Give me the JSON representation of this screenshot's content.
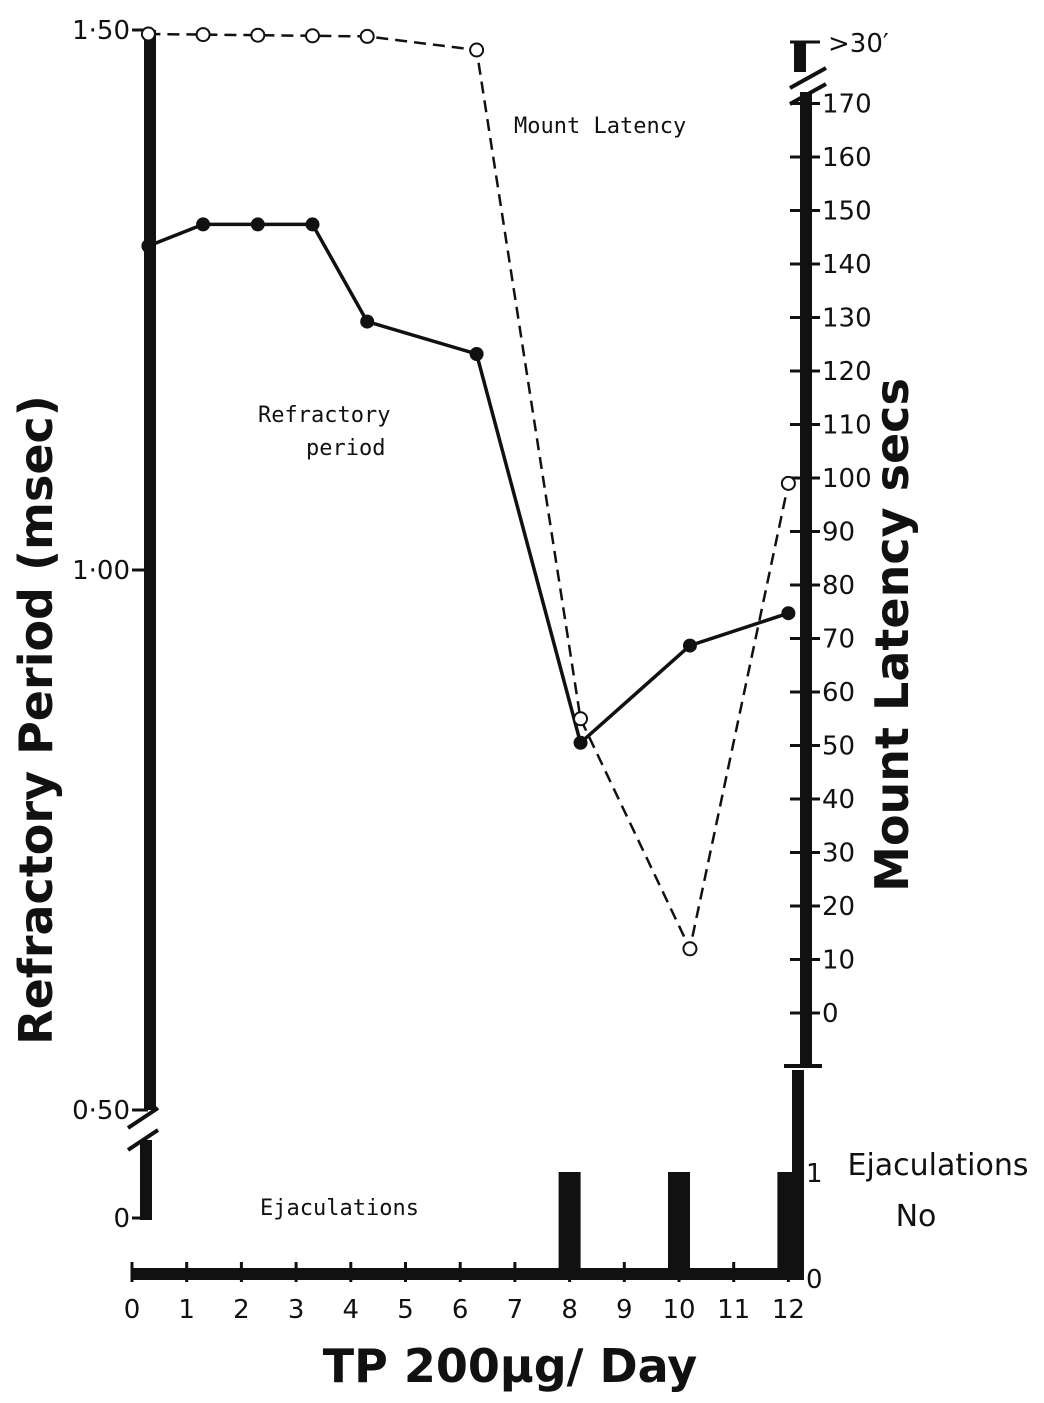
{
  "chart_data": {
    "type": "line",
    "title": "",
    "xlabel": "TP 200µg/ Day",
    "x_ticks": [
      "0",
      "1",
      "2",
      "3",
      "4",
      "5",
      "6",
      "7",
      "8",
      "9",
      "10",
      "11",
      "12"
    ],
    "xlim": [
      0,
      12
    ],
    "left_axis": {
      "label": "Refractory Period (msec)",
      "ticks": [
        "1·50",
        "1·00",
        "0·50",
        "0"
      ],
      "ylim": [
        0.5,
        1.5
      ]
    },
    "right_axis": {
      "label": "Mount Latency secs",
      "ticks": [
        "0",
        "10",
        "20",
        "30",
        "40",
        "50",
        "60",
        "70",
        "80",
        "90",
        "100",
        "110",
        "120",
        "130",
        "140",
        "150",
        "160",
        "170"
      ],
      "top_tick": ">30′",
      "ylim": [
        0,
        180
      ]
    },
    "ejaculation_axis": {
      "label_line1": "Ejaculations",
      "label_line2": "No",
      "ticks": [
        "0",
        "1"
      ]
    },
    "series": [
      {
        "annotation_line1": "Refractory",
        "annotation_line2": "period",
        "axis": "left",
        "style": "solid-filled",
        "x": [
          0.3,
          1.3,
          2.3,
          3.3,
          4.3,
          6.3,
          8.2,
          10.2,
          12
        ],
        "values": [
          1.3,
          1.32,
          1.32,
          1.32,
          1.23,
          1.2,
          0.84,
          0.93,
          0.96
        ]
      },
      {
        "annotation_line1": "Mount Latency",
        "axis": "right",
        "style": "dashed-open",
        "x": [
          0.3,
          1.3,
          2.3,
          3.3,
          4.3,
          6.3,
          8.2,
          10.2,
          12
        ],
        "values": [
          ">30′",
          ">30′",
          ">30′",
          ">30′",
          ">30′",
          ">30′",
          55,
          12,
          99
        ]
      },
      {
        "annotation_line1": "Ejaculations",
        "axis": "ejaculation",
        "style": "bar",
        "x": [
          8,
          10,
          12
        ],
        "values": [
          1,
          1,
          1
        ]
      }
    ]
  }
}
